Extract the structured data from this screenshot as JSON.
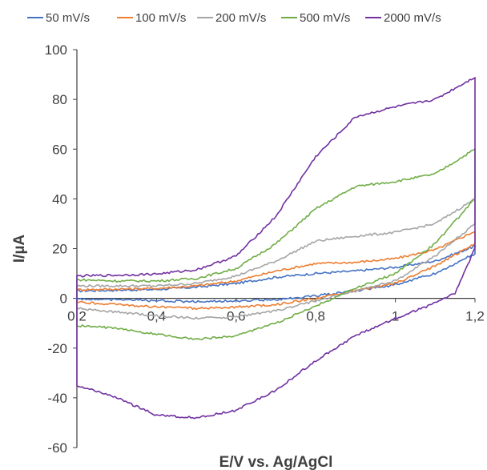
{
  "chart_data": {
    "type": "line",
    "xlabel": "E/V vs. Ag/AgCl",
    "ylabel": "I/µA",
    "xlim": [
      0.2,
      1.2
    ],
    "ylim": [
      -60,
      100
    ],
    "x_ticks": [
      "0,2",
      "0,4",
      "0,6",
      "0,8",
      "1",
      "1,2"
    ],
    "y_ticks": [
      "-60",
      "-40",
      "-20",
      "0",
      "20",
      "40",
      "60",
      "80",
      "100"
    ],
    "x_tick_values": [
      0.2,
      0.4,
      0.6,
      0.8,
      1.0,
      1.2
    ],
    "y_tick_values": [
      -60,
      -40,
      -20,
      0,
      20,
      40,
      60,
      80,
      100
    ],
    "grid": false,
    "legend_position": "top",
    "series": [
      {
        "name": "50 mV/s",
        "color": "#4472C4",
        "forward": [
          [
            0.2,
            3
          ],
          [
            0.3,
            3.3
          ],
          [
            0.4,
            3.6
          ],
          [
            0.5,
            4.5
          ],
          [
            0.6,
            6
          ],
          [
            0.7,
            8.5
          ],
          [
            0.8,
            10
          ],
          [
            0.9,
            11
          ],
          [
            1.0,
            12.5
          ],
          [
            1.1,
            15
          ],
          [
            1.2,
            21
          ]
        ],
        "reverse": [
          [
            1.2,
            18
          ],
          [
            1.1,
            10
          ],
          [
            1.0,
            5.5
          ],
          [
            0.9,
            3
          ],
          [
            0.8,
            1
          ],
          [
            0.7,
            -0.5
          ],
          [
            0.6,
            -1
          ],
          [
            0.5,
            -1.3
          ],
          [
            0.4,
            -1
          ],
          [
            0.3,
            -0.5
          ],
          [
            0.2,
            -0.2
          ]
        ]
      },
      {
        "name": "100 mV/s",
        "color": "#ED7D31",
        "forward": [
          [
            0.2,
            3.5
          ],
          [
            0.3,
            3.7
          ],
          [
            0.4,
            4
          ],
          [
            0.5,
            5
          ],
          [
            0.6,
            7
          ],
          [
            0.7,
            11
          ],
          [
            0.8,
            14
          ],
          [
            0.9,
            14.5
          ],
          [
            1.0,
            16
          ],
          [
            1.1,
            19.5
          ],
          [
            1.2,
            27
          ]
        ],
        "reverse": [
          [
            1.2,
            22
          ],
          [
            1.1,
            13
          ],
          [
            1.0,
            6
          ],
          [
            0.9,
            3
          ],
          [
            0.8,
            0
          ],
          [
            0.7,
            -2.5
          ],
          [
            0.6,
            -3.5
          ],
          [
            0.5,
            -4
          ],
          [
            0.4,
            -3.5
          ],
          [
            0.3,
            -2.5
          ],
          [
            0.2,
            -1.5
          ]
        ]
      },
      {
        "name": "200 mV/s",
        "color": "#A5A5A5",
        "forward": [
          [
            0.2,
            5
          ],
          [
            0.3,
            5
          ],
          [
            0.4,
            5
          ],
          [
            0.5,
            6
          ],
          [
            0.6,
            9
          ],
          [
            0.7,
            15
          ],
          [
            0.8,
            23
          ],
          [
            0.9,
            25
          ],
          [
            1.0,
            26.5
          ],
          [
            1.1,
            30
          ],
          [
            1.2,
            40
          ]
        ],
        "reverse": [
          [
            1.2,
            30
          ],
          [
            1.1,
            17
          ],
          [
            1.0,
            7
          ],
          [
            0.9,
            3
          ],
          [
            0.8,
            -1
          ],
          [
            0.7,
            -5
          ],
          [
            0.6,
            -7.5
          ],
          [
            0.5,
            -8
          ],
          [
            0.4,
            -7
          ],
          [
            0.3,
            -5.5
          ],
          [
            0.2,
            -4
          ]
        ]
      },
      {
        "name": "500 mV/s",
        "color": "#70AD47",
        "forward": [
          [
            0.2,
            7.5
          ],
          [
            0.3,
            7
          ],
          [
            0.4,
            7
          ],
          [
            0.5,
            8
          ],
          [
            0.6,
            12
          ],
          [
            0.7,
            22
          ],
          [
            0.8,
            36
          ],
          [
            0.9,
            45
          ],
          [
            1.0,
            47
          ],
          [
            1.1,
            50
          ],
          [
            1.2,
            60
          ]
        ],
        "reverse": [
          [
            1.2,
            40
          ],
          [
            1.1,
            22
          ],
          [
            1.0,
            10
          ],
          [
            0.9,
            4
          ],
          [
            0.8,
            -3
          ],
          [
            0.7,
            -10
          ],
          [
            0.6,
            -15
          ],
          [
            0.5,
            -16.5
          ],
          [
            0.4,
            -14.5
          ],
          [
            0.3,
            -12
          ],
          [
            0.2,
            -11
          ]
        ]
      },
      {
        "name": "2000 mV/s",
        "color": "#7030A0",
        "forward": [
          [
            0.2,
            9
          ],
          [
            0.3,
            9.3
          ],
          [
            0.4,
            9.8
          ],
          [
            0.5,
            11.5
          ],
          [
            0.6,
            17
          ],
          [
            0.7,
            33
          ],
          [
            0.8,
            57
          ],
          [
            0.9,
            73
          ],
          [
            1.0,
            77
          ],
          [
            1.1,
            80
          ],
          [
            1.2,
            89
          ]
        ],
        "reverse": [
          [
            1.2,
            20
          ],
          [
            1.15,
            2
          ],
          [
            1.1,
            -2
          ],
          [
            1.0,
            -8
          ],
          [
            0.9,
            -15
          ],
          [
            0.8,
            -25
          ],
          [
            0.7,
            -37
          ],
          [
            0.6,
            -45
          ],
          [
            0.5,
            -48
          ],
          [
            0.4,
            -47
          ],
          [
            0.3,
            -40
          ],
          [
            0.2,
            -35
          ]
        ]
      }
    ]
  }
}
